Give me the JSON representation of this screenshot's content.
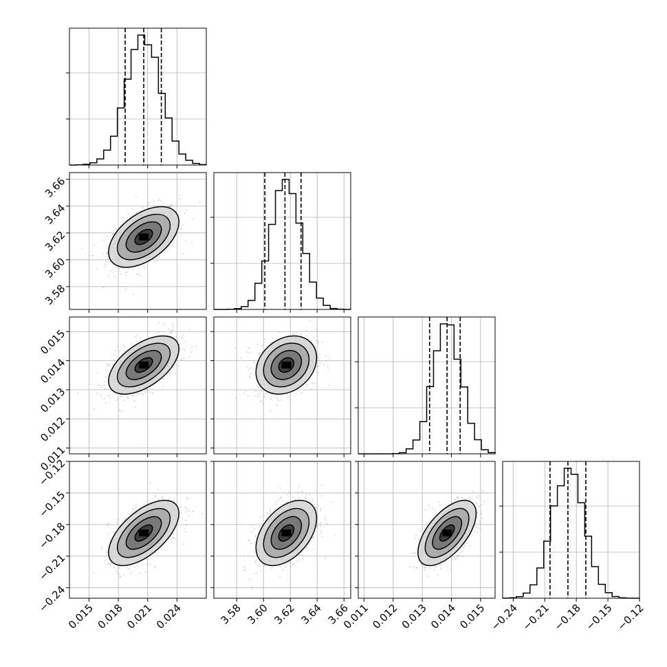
{
  "chart_data": {
    "type": "corner",
    "title": "",
    "grid": true,
    "parameters": [
      {
        "range": [
          0.013,
          0.027
        ],
        "ticks": [
          0.015,
          0.018,
          0.021,
          0.024
        ],
        "tick_labels": [
          "0.015",
          "0.018",
          "0.021",
          "0.024"
        ],
        "mean": 0.0206,
        "sd": 0.0018,
        "quantiles": [
          0.0187,
          0.0206,
          0.0224
        ]
      },
      {
        "range": [
          3.563,
          3.665
        ],
        "ticks": [
          3.58,
          3.6,
          3.62,
          3.64,
          3.66
        ],
        "tick_labels": [
          "3.58",
          "3.60",
          "3.62",
          "3.64",
          "3.66"
        ],
        "mean": 3.617,
        "sd": 0.0113,
        "quantiles": [
          3.601,
          3.616,
          3.628
        ]
      },
      {
        "range": [
          0.0108,
          0.0155
        ],
        "ticks": [
          0.011,
          0.012,
          0.013,
          0.014,
          0.015
        ],
        "tick_labels": [
          "0.011",
          "0.012",
          "0.013",
          "0.014",
          "0.015"
        ],
        "mean": 0.01385,
        "sd": 0.0005,
        "quantiles": [
          0.01325,
          0.01385,
          0.0143
        ]
      },
      {
        "range": [
          -0.25,
          -0.12
        ],
        "ticks": [
          -0.24,
          -0.21,
          -0.18,
          -0.15,
          -0.12
        ],
        "tick_labels": [
          "−0.24",
          "−0.21",
          "−0.18",
          "−0.15",
          "−0.12"
        ],
        "mean": -0.188,
        "sd": 0.0155,
        "quantiles": [
          -0.205,
          -0.188,
          -0.171
        ]
      }
    ],
    "correlations": [
      {
        "pair": [
          1,
          0
        ],
        "rho": 0.5
      },
      {
        "pair": [
          2,
          0
        ],
        "rho": 0.55
      },
      {
        "pair": [
          2,
          1
        ],
        "rho": 0.25
      },
      {
        "pair": [
          3,
          0
        ],
        "rho": 0.6
      },
      {
        "pair": [
          3,
          1
        ],
        "rho": 0.45
      },
      {
        "pair": [
          3,
          2
        ],
        "rho": 0.6
      }
    ],
    "contour_levels_sigma": [
      0.5,
      1.0,
      1.5,
      2.0
    ]
  }
}
